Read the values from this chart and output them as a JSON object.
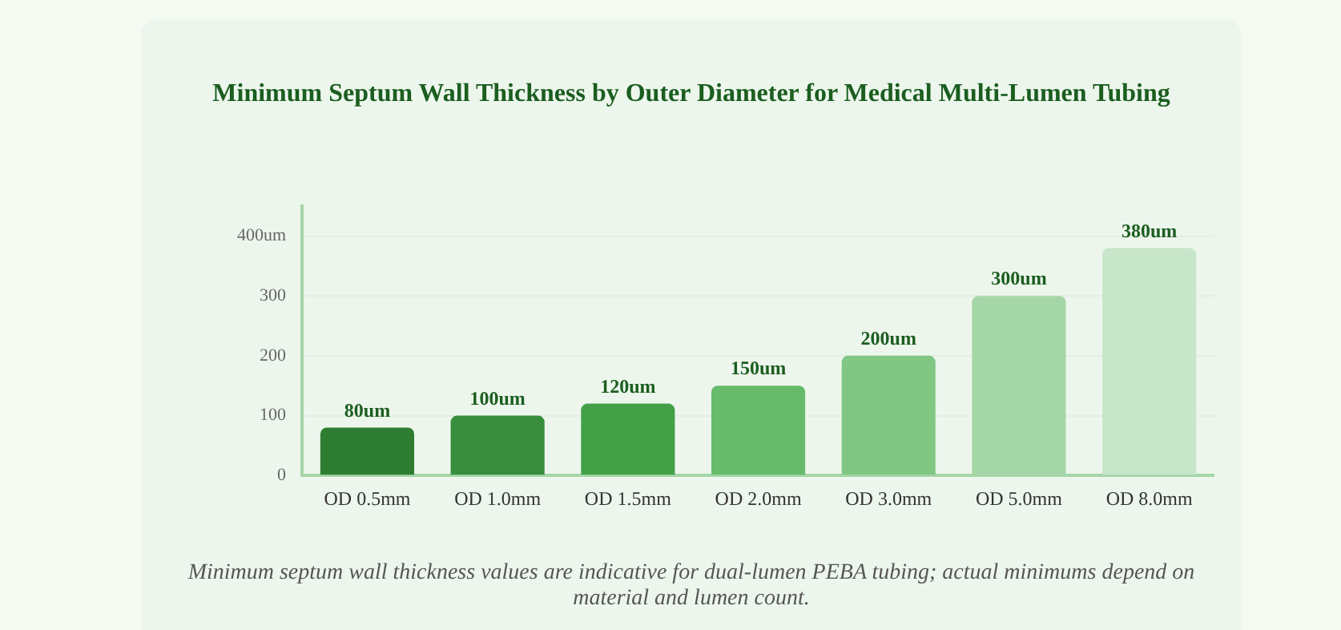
{
  "chart_data": {
    "type": "bar",
    "title": "Minimum Septum Wall Thickness by Outer Diameter for Medical Multi-Lumen Tubing",
    "categories": [
      "OD 0.5mm",
      "OD 1.0mm",
      "OD 1.5mm",
      "OD 2.0mm",
      "OD 3.0mm",
      "OD 5.0mm",
      "OD 8.0mm"
    ],
    "values": [
      80,
      100,
      120,
      150,
      200,
      300,
      380
    ],
    "colors": [
      "#2e7d32",
      "#388e3c",
      "#43a047",
      "#66bb6a",
      "#81c784",
      "#a5d6a7",
      "#c8e6c9"
    ],
    "value_labels": [
      "80um",
      "100um",
      "120um",
      "150um",
      "200um",
      "300um",
      "380um"
    ],
    "ylim": [
      0,
      450
    ],
    "yticks": [
      0,
      100,
      200,
      300,
      {
        "value": 400,
        "label": "400um"
      }
    ],
    "grid": "y",
    "annotations": [
      "Minimum septum wall thickness values are indicative for dual-lumen PEBA tubing; actual minimums depend on material and lumen count."
    ]
  }
}
